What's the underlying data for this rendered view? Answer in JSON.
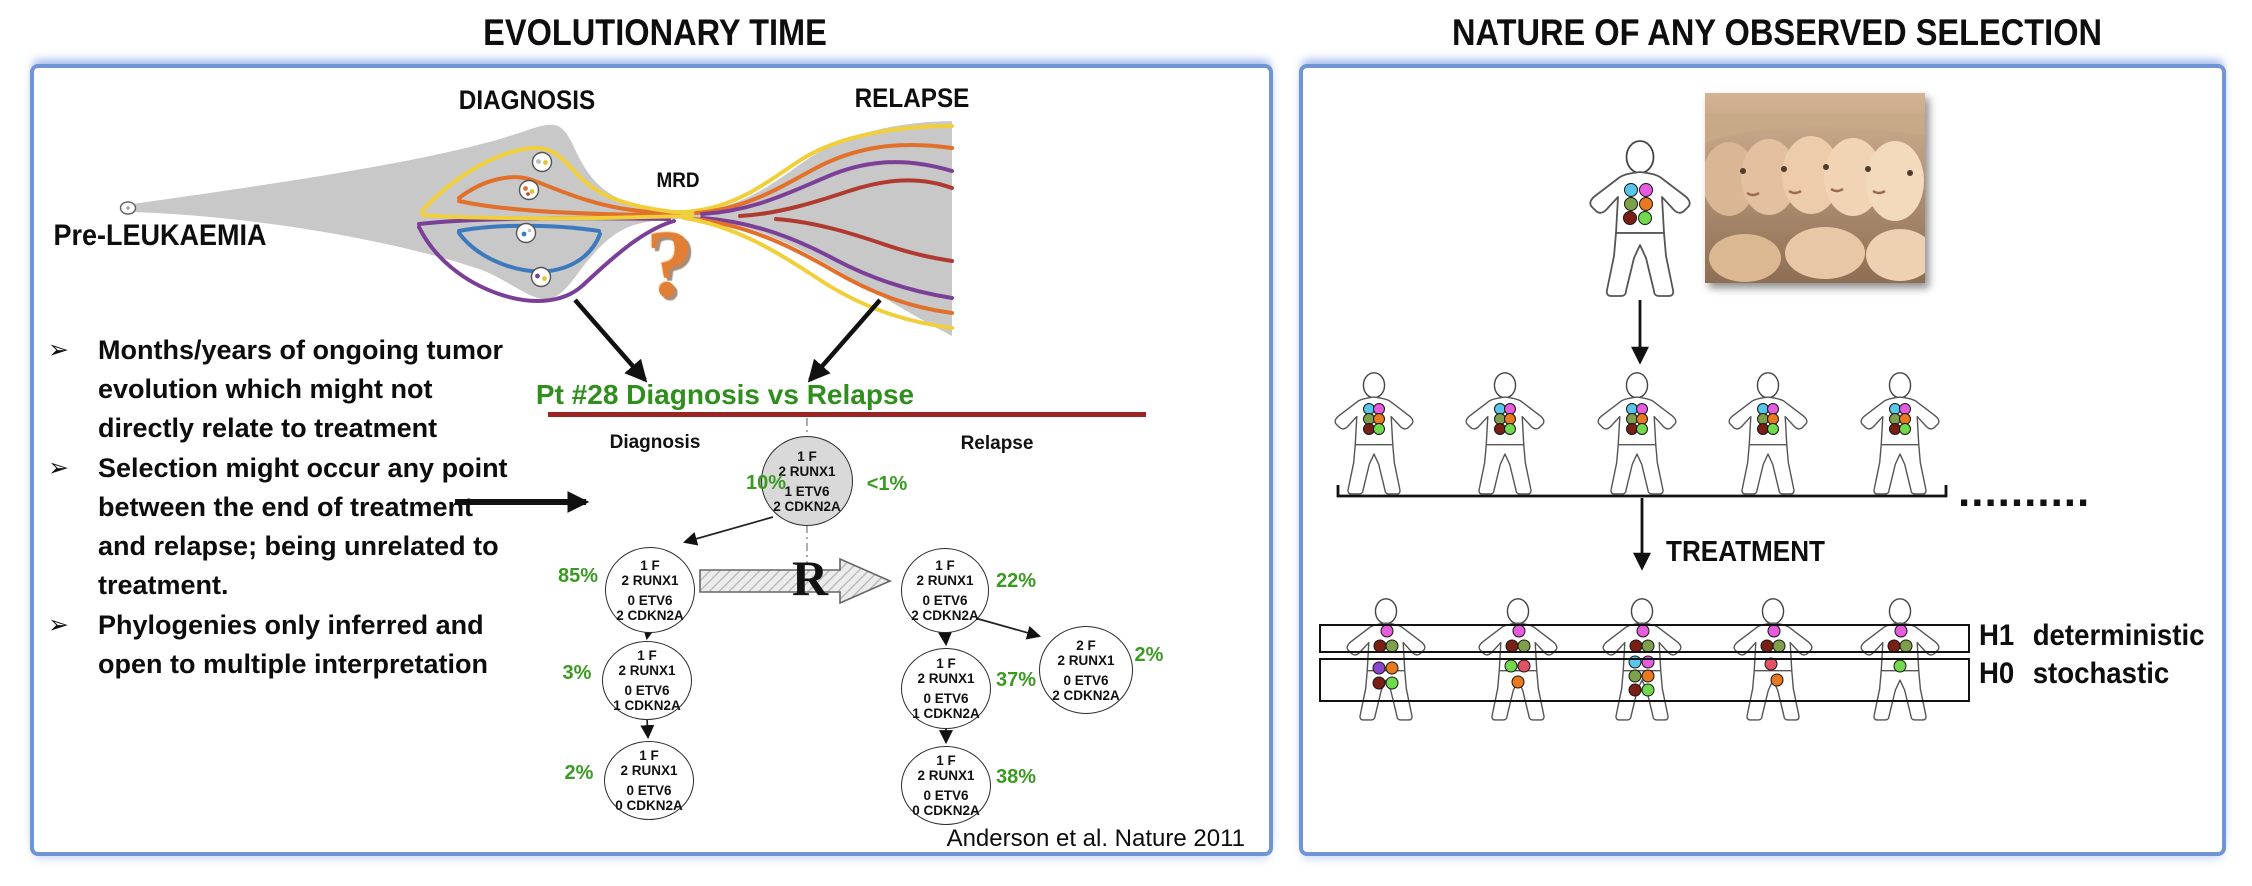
{
  "left_panel": {
    "title": "EVOLUTIONARY TIME",
    "fishplot": {
      "pre_leukaemia_label": "Pre-LEUKAEMIA",
      "diagnosis_label": "DIAGNOSIS",
      "mrd_label": "MRD",
      "relapse_label": "RELAPSE",
      "question_mark": "?",
      "colors": {
        "body_gray": "#c8c8c8",
        "yellow": "#f0cf3a",
        "orange": "#e2702a",
        "purple": "#7c3f98",
        "blue": "#3d7abd",
        "red": "#b03a30"
      }
    },
    "bullet_char": "➢",
    "bullets": [
      "Months/years of ongoing tumor evolution which might not directly relate to treatment",
      "Selection might occur any point between the end of treatment and relapse; being unrelated to treatment.",
      "Phylogenies only inferred and open to multiple interpretation"
    ],
    "tree": {
      "title": "Pt #28 Diagnosis vs Relapse",
      "title_color": "#2e8f1c",
      "divider_color": "#9b2423",
      "percent_color": "#3a9a22",
      "diagnosis_label": "Diagnosis",
      "relapse_label": "Relapse",
      "r_label": "R",
      "nodes": [
        {
          "lines": [
            "1 F",
            "2 RUNX1",
            "1 ETV6",
            "2 CDKN2A"
          ],
          "pct": "10%",
          "pct2": "<1%"
        },
        {
          "lines": [
            "1 F",
            "2 RUNX1",
            "0 ETV6",
            "2 CDKN2A"
          ],
          "pct": "85%"
        },
        {
          "lines": [
            "1 F",
            "2 RUNX1",
            "0 ETV6",
            "1 CDKN2A"
          ],
          "pct": "3%"
        },
        {
          "lines": [
            "1 F",
            "2 RUNX1",
            "0 ETV6",
            "0 CDKN2A"
          ],
          "pct": "2%"
        },
        {
          "lines": [
            "1 F",
            "2 RUNX1",
            "0 ETV6",
            "2 CDKN2A"
          ],
          "pct": "22%"
        },
        {
          "lines": [
            "1 F",
            "2 RUNX1",
            "0 ETV6",
            "1 CDKN2A"
          ],
          "pct": "37%"
        },
        {
          "lines": [
            "1 F",
            "2 RUNX1",
            "0 ETV6",
            "0 CDKN2A"
          ],
          "pct": "38%"
        },
        {
          "lines": [
            "2 F",
            "2 RUNX1",
            "0 ETV6",
            "2 CDKN2A"
          ],
          "pct": "2%"
        }
      ],
      "citation": "Anderson et al. Nature 2011"
    }
  },
  "right_panel": {
    "title": "NATURE OF ANY OBSERVED SELECTION",
    "treatment_label": "TREATMENT",
    "ellipsis": "..........",
    "hypotheses": [
      {
        "code": "H1",
        "label": "deterministic"
      },
      {
        "code": "H0",
        "label": "stochastic"
      }
    ],
    "palette": {
      "cyan": "#58c5ea",
      "magenta": "#e55cdf",
      "olive": "#7fa04b",
      "orange": "#e8791f",
      "maroon": "#7a1f15",
      "green": "#72d94e",
      "purple": "#8a46c9",
      "red": "#e25263"
    },
    "dot_patterns": {
      "founder": {
        "size": 14,
        "dots": [
          [
            "cyan",
            46,
            50
          ],
          [
            "magenta",
            61,
            50
          ],
          [
            "olive",
            46,
            64
          ],
          [
            "orange",
            61,
            64
          ],
          [
            "maroon",
            45,
            78
          ],
          [
            "green",
            60,
            78
          ]
        ]
      },
      "row": {
        "size": 12,
        "dots": [
          [
            "cyan",
            38,
            37
          ],
          [
            "magenta",
            48,
            37
          ],
          [
            "olive",
            38,
            47
          ],
          [
            "orange",
            48,
            47
          ],
          [
            "maroon",
            38,
            57
          ],
          [
            "green",
            48,
            57
          ]
        ]
      },
      "h1": {
        "size": 13,
        "dots": [
          [
            "magenta",
            44,
            33
          ],
          [
            "maroon",
            37,
            48
          ],
          [
            "olive",
            49,
            48
          ]
        ]
      },
      "h0": [
        {
          "size": 13,
          "dots": [
            [
              "purple",
              36,
              70
            ],
            [
              "orange",
              49,
              70
            ],
            [
              "maroon",
              36,
              85
            ],
            [
              "green",
              49,
              85
            ]
          ]
        },
        {
          "size": 13,
          "dots": [
            [
              "green",
              36,
              68
            ],
            [
              "red",
              49,
              68
            ],
            [
              "orange",
              43,
              84
            ]
          ]
        },
        {
          "size": 13,
          "dots": [
            [
              "cyan",
              36,
              64
            ],
            [
              "magenta",
              49,
              64
            ],
            [
              "olive",
              36,
              78
            ],
            [
              "orange",
              49,
              78
            ],
            [
              "maroon",
              36,
              92
            ],
            [
              "green",
              49,
              92
            ]
          ]
        },
        {
          "size": 13,
          "dots": [
            [
              "red",
              41,
              66
            ],
            [
              "orange",
              47,
              82
            ]
          ]
        },
        {
          "size": 13,
          "dots": [
            [
              "green",
              43,
              68
            ]
          ]
        }
      ]
    }
  }
}
